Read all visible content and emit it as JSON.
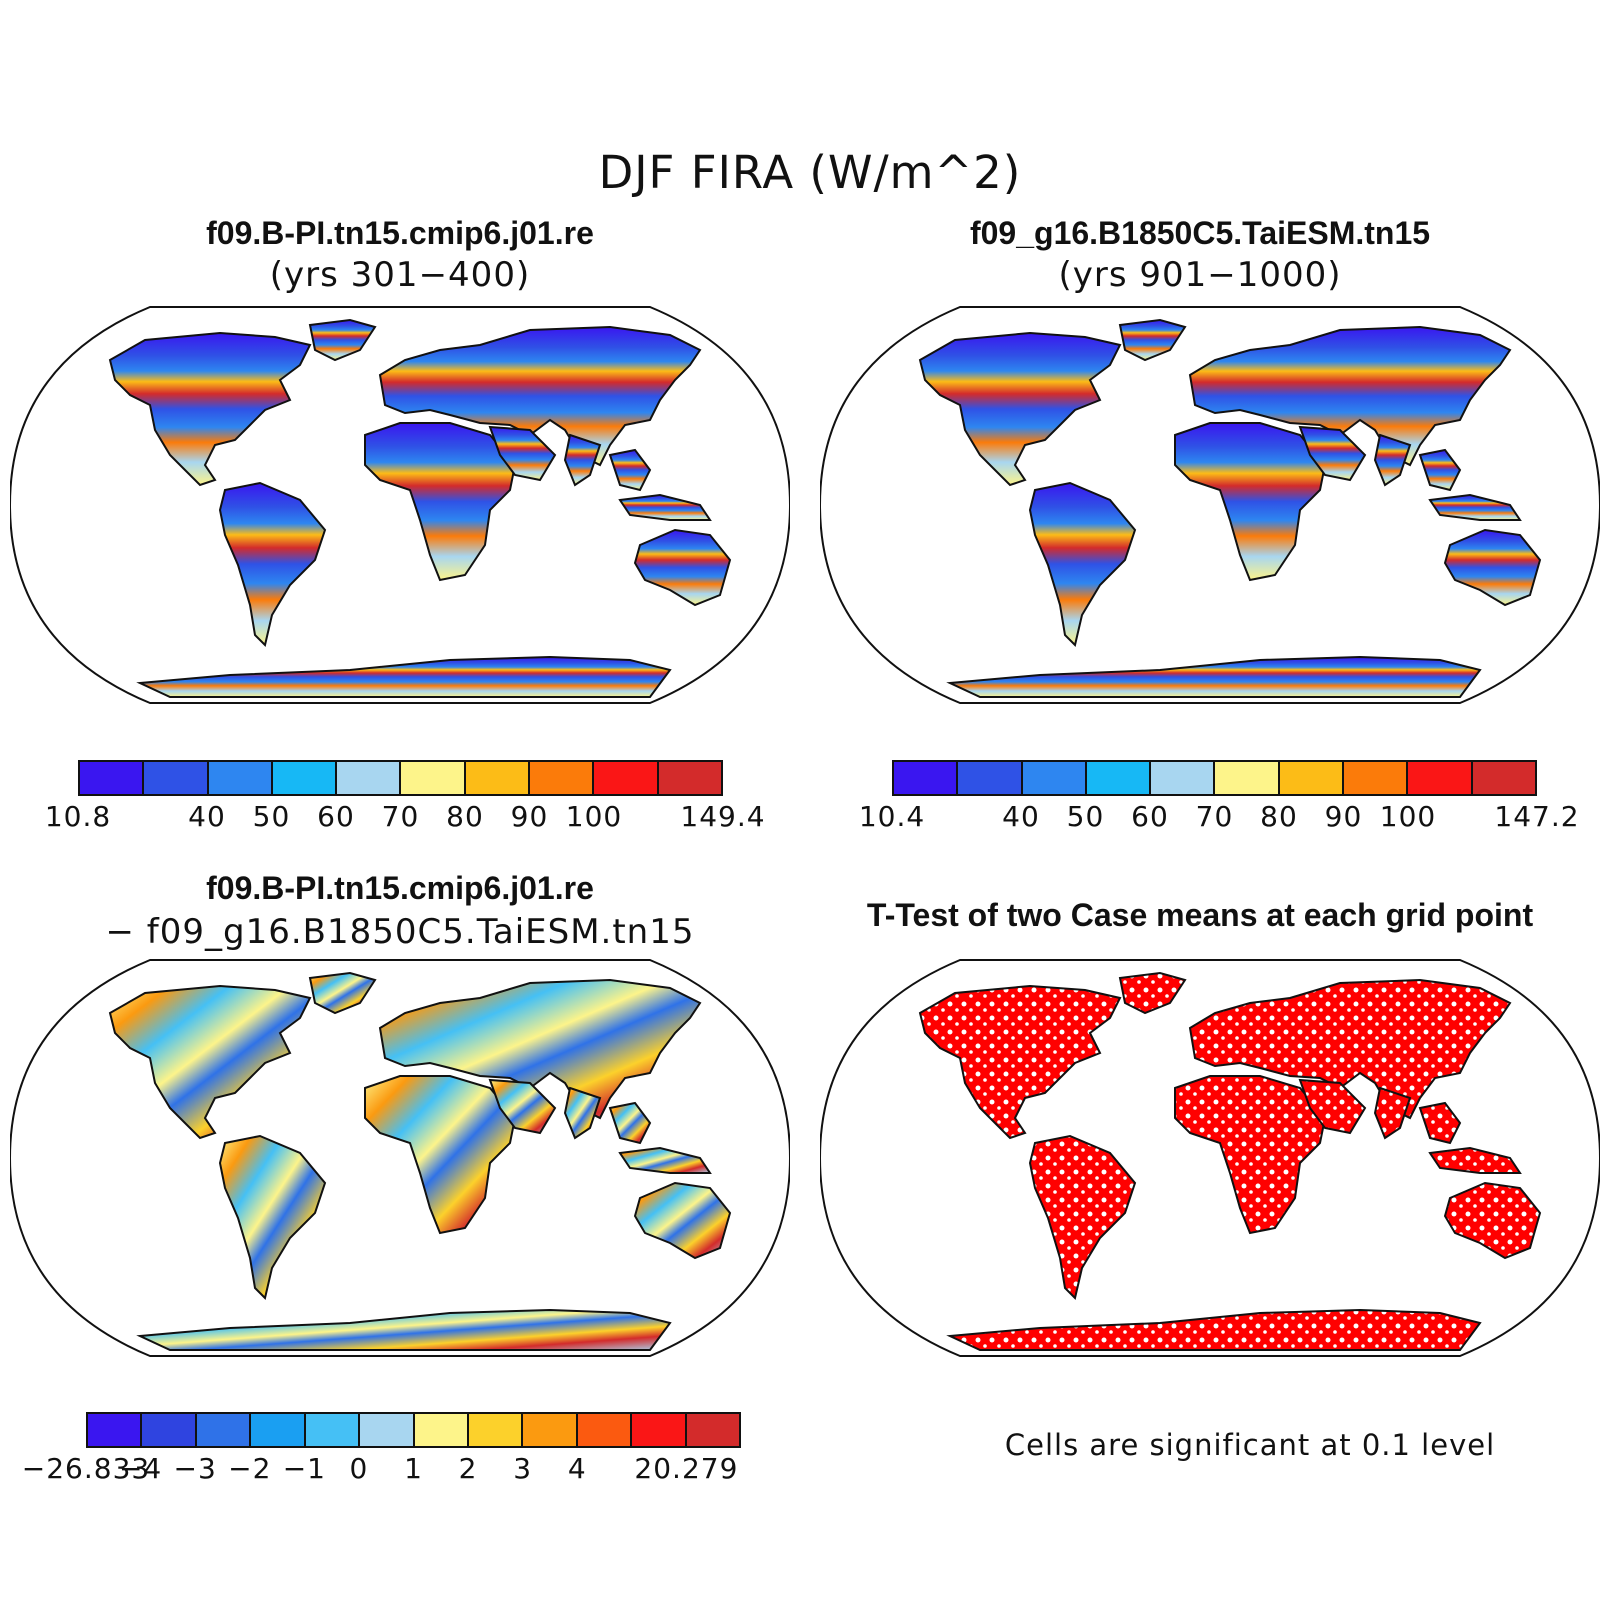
{
  "figure": {
    "title": "DJF FIRA (W/m^2)"
  },
  "panels": [
    {
      "title": "f09.B-PI.tn15.cmip6.j01.re",
      "subtitle": "(yrs 301−400)",
      "colorbar": {
        "colors": [
          "#3a16f0",
          "#2f52e6",
          "#2e86f0",
          "#17b8f5",
          "#a8d6f0",
          "#fdf48a",
          "#fcbc17",
          "#fb7b0a",
          "#fa1616",
          "#d32b2b"
        ],
        "labels": [
          "10.8",
          "",
          "40",
          "50",
          "60",
          "70",
          "80",
          "90",
          "100",
          "",
          "149.4"
        ]
      }
    },
    {
      "title": "f09_g16.B1850C5.TaiESM.tn15",
      "subtitle": "(yrs 901−1000)",
      "colorbar": {
        "colors": [
          "#3a16f0",
          "#2f52e6",
          "#2e86f0",
          "#17b8f5",
          "#a8d6f0",
          "#fdf48a",
          "#fcbc17",
          "#fb7b0a",
          "#fa1616",
          "#d32b2b"
        ],
        "labels": [
          "10.4",
          "",
          "40",
          "50",
          "60",
          "70",
          "80",
          "90",
          "100",
          "",
          "147.2"
        ]
      }
    },
    {
      "title": "f09.B-PI.tn15.cmip6.j01.re",
      "subtitle": "− f09_g16.B1850C5.TaiESM.tn15",
      "colorbar": {
        "colors": [
          "#3a16f0",
          "#2f44e0",
          "#2f72e8",
          "#1a9ff2",
          "#45c0f5",
          "#a8d6f0",
          "#fdf48a",
          "#fcd12b",
          "#fb9a10",
          "#fb5a10",
          "#fa1616",
          "#d32b2b"
        ],
        "labels": [
          "−26.833",
          "−4",
          "−3",
          "−2",
          "−1",
          "0",
          "1",
          "2",
          "3",
          "4",
          "",
          "20.279"
        ]
      }
    },
    {
      "title": "T-Test of two Case means at each grid point",
      "note": "Cells are significant at 0.1 level"
    }
  ],
  "colors": {
    "ocean": "#ffffff",
    "outline": "#111111",
    "significant": "#ff0000"
  }
}
